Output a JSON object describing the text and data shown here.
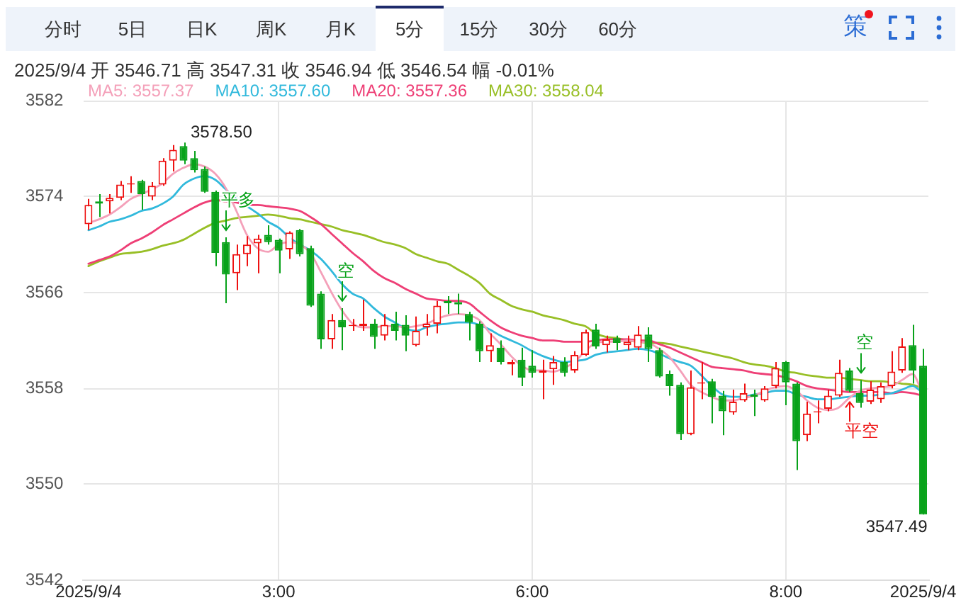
{
  "chart_data": {
    "type": "candlestick",
    "subtitle": "2025/9/4 开 3546.71 高 3547.31 收 3546.94 低 3546.54 幅 -0.01%",
    "categories": [
      "2025/9/4",
      null,
      null,
      null,
      null,
      null,
      null,
      null,
      null,
      null,
      null,
      null,
      null,
      null,
      null,
      null,
      null,
      null,
      "3:00",
      null,
      null,
      null,
      null,
      null,
      null,
      null,
      null,
      null,
      null,
      null,
      null,
      null,
      null,
      null,
      null,
      null,
      null,
      null,
      null,
      null,
      null,
      null,
      "6:00",
      null,
      null,
      null,
      null,
      null,
      null,
      null,
      null,
      null,
      null,
      null,
      null,
      null,
      null,
      null,
      null,
      null,
      null,
      null,
      null,
      null,
      null,
      null,
      "8:00",
      null,
      null,
      null,
      null,
      null,
      null,
      null,
      null,
      null,
      null,
      null,
      null,
      "2025/9/4"
    ],
    "ohlc": [
      [
        3571.7,
        3573.8,
        3571.2,
        3573.3
      ],
      [
        3573.6,
        3574.2,
        3572.3,
        3573.4
      ],
      [
        3573.6,
        3574.2,
        3572.6,
        3573.9
      ],
      [
        3573.9,
        3575.3,
        3573.7,
        3575.0
      ],
      [
        3575.0,
        3575.7,
        3574.3,
        3575.1
      ],
      [
        3575.3,
        3575.4,
        3572.9,
        3574.2
      ],
      [
        3574.0,
        3575.2,
        3573.7,
        3574.9
      ],
      [
        3575.0,
        3577.2,
        3574.9,
        3577.0
      ],
      [
        3577.0,
        3578.3,
        3576.1,
        3577.9
      ],
      [
        3578.2,
        3578.5,
        3576.7,
        3577.0
      ],
      [
        3577.2,
        3577.8,
        3576.0,
        3576.2
      ],
      [
        3576.3,
        3576.5,
        3574.3,
        3574.4
      ],
      [
        3574.4,
        3574.5,
        3568.2,
        3569.3
      ],
      [
        3570.2,
        3570.6,
        3565.1,
        3567.5
      ],
      [
        3567.6,
        3570.0,
        3566.2,
        3569.2
      ],
      [
        3569.2,
        3570.7,
        3568.2,
        3570.0
      ],
      [
        3570.1,
        3570.8,
        3567.6,
        3570.5
      ],
      [
        3570.8,
        3571.6,
        3570.0,
        3570.2
      ],
      [
        3570.4,
        3570.5,
        3567.6,
        3569.5
      ],
      [
        3569.6,
        3571.1,
        3568.8,
        3571.0
      ],
      [
        3571.2,
        3571.3,
        3569.0,
        3569.2
      ],
      [
        3569.7,
        3569.9,
        3564.8,
        3564.9
      ],
      [
        3565.9,
        3566.1,
        3561.3,
        3562.1
      ],
      [
        3562.1,
        3564.2,
        3561.3,
        3563.7
      ],
      [
        3563.7,
        3564.7,
        3561.2,
        3563.1
      ],
      [
        3563.2,
        3563.8,
        3562.8,
        3563.3
      ],
      [
        3563.2,
        3565.4,
        3562.8,
        3563.4
      ],
      [
        3563.4,
        3563.8,
        3561.3,
        3562.3
      ],
      [
        3562.4,
        3564.2,
        3562.0,
        3563.3
      ],
      [
        3563.4,
        3564.4,
        3562.0,
        3562.8
      ],
      [
        3563.3,
        3564.1,
        3561.1,
        3562.4
      ],
      [
        3561.6,
        3564.0,
        3561.5,
        3562.8
      ],
      [
        3563.1,
        3564.2,
        3562.4,
        3563.4
      ],
      [
        3563.4,
        3565.3,
        3562.6,
        3564.9
      ],
      [
        3565.3,
        3565.7,
        3564.2,
        3565.1
      ],
      [
        3565.2,
        3565.9,
        3564.2,
        3565.0
      ],
      [
        3564.2,
        3564.4,
        3562.0,
        3563.5
      ],
      [
        3563.4,
        3563.6,
        3560.2,
        3561.1
      ],
      [
        3561.1,
        3562.6,
        3560.2,
        3561.6
      ],
      [
        3561.4,
        3562.0,
        3560.0,
        3560.2
      ],
      [
        3560.0,
        3560.4,
        3559.1,
        3560.2
      ],
      [
        3560.4,
        3561.4,
        3558.2,
        3558.9
      ],
      [
        3559.9,
        3561.2,
        3558.9,
        3559.3
      ],
      [
        3559.3,
        3560.4,
        3557.1,
        3559.5
      ],
      [
        3559.6,
        3560.7,
        3558.3,
        3560.2
      ],
      [
        3560.2,
        3560.6,
        3559.0,
        3559.3
      ],
      [
        3559.5,
        3561.1,
        3559.3,
        3560.8
      ],
      [
        3560.8,
        3562.9,
        3560.7,
        3562.7
      ],
      [
        3562.9,
        3563.4,
        3561.3,
        3561.5
      ],
      [
        3561.6,
        3562.4,
        3561.0,
        3562.1
      ],
      [
        3562.2,
        3562.4,
        3561.2,
        3561.8
      ],
      [
        3561.6,
        3562.4,
        3561.2,
        3561.9
      ],
      [
        3561.4,
        3563.2,
        3561.2,
        3562.5
      ],
      [
        3562.5,
        3563.1,
        3560.2,
        3561.3
      ],
      [
        3561.2,
        3561.4,
        3558.9,
        3559.0
      ],
      [
        3559.2,
        3559.5,
        3557.4,
        3558.2
      ],
      [
        3558.3,
        3558.5,
        3553.7,
        3554.2
      ],
      [
        3554.2,
        3559.5,
        3554.1,
        3558.1
      ],
      [
        3558.4,
        3560.2,
        3557.1,
        3558.5
      ],
      [
        3558.6,
        3558.8,
        3555.1,
        3557.3
      ],
      [
        3557.4,
        3557.8,
        3554.1,
        3556.1
      ],
      [
        3556.0,
        3557.9,
        3555.8,
        3556.9
      ],
      [
        3557.0,
        3558.4,
        3556.9,
        3557.6
      ],
      [
        3557.5,
        3557.9,
        3555.7,
        3557.3
      ],
      [
        3557.0,
        3558.2,
        3556.9,
        3558.0
      ],
      [
        3558.2,
        3560.2,
        3558.0,
        3559.7
      ],
      [
        3560.2,
        3560.3,
        3556.6,
        3558.5
      ],
      [
        3558.4,
        3558.5,
        3551.2,
        3553.6
      ],
      [
        3554.1,
        3556.9,
        3553.6,
        3555.9
      ],
      [
        3556.0,
        3557.0,
        3555.1,
        3556.1
      ],
      [
        3556.3,
        3557.9,
        3556.1,
        3557.4
      ],
      [
        3557.4,
        3560.4,
        3557.3,
        3559.3
      ],
      [
        3559.5,
        3559.7,
        3557.7,
        3557.8
      ],
      [
        3557.6,
        3558.7,
        3556.4,
        3556.8
      ],
      [
        3556.9,
        3558.6,
        3556.7,
        3557.9
      ],
      [
        3557.1,
        3558.5,
        3556.8,
        3558.2
      ],
      [
        3558.2,
        3561.1,
        3558.0,
        3559.4
      ],
      [
        3559.5,
        3562.2,
        3559.3,
        3561.5
      ],
      [
        3561.6,
        3563.3,
        3558.4,
        3559.5
      ],
      [
        3559.9,
        3561.3,
        3547.49,
        3547.49
      ]
    ],
    "colors": [
      "#ee1111",
      "#08a21a",
      "#ee1111",
      "#ee1111",
      "#ee1111",
      "#08a21a",
      "#ee1111",
      "#ee1111",
      "#ee1111",
      "#08a21a",
      "#08a21a",
      "#08a21a",
      "#08a21a",
      "#08a21a",
      "#ee1111",
      "#ee1111",
      "#ee1111",
      "#08a21a",
      "#08a21a",
      "#ee1111",
      "#08a21a",
      "#08a21a",
      "#08a21a",
      "#ee1111",
      "#08a21a",
      "#ee1111",
      "#ee1111",
      "#08a21a",
      "#ee1111",
      "#08a21a",
      "#08a21a",
      "#ee1111",
      "#ee1111",
      "#ee1111",
      "#08a21a",
      "#08a21a",
      "#08a21a",
      "#08a21a",
      "#ee1111",
      "#08a21a",
      "#ee1111",
      "#08a21a",
      "#08a21a",
      "#ee1111",
      "#ee1111",
      "#08a21a",
      "#ee1111",
      "#ee1111",
      "#08a21a",
      "#ee1111",
      "#08a21a",
      "#ee1111",
      "#ee1111",
      "#08a21a",
      "#08a21a",
      "#08a21a",
      "#08a21a",
      "#ee1111",
      "#ee1111",
      "#08a21a",
      "#08a21a",
      "#ee1111",
      "#ee1111",
      "#08a21a",
      "#ee1111",
      "#ee1111",
      "#08a21a",
      "#08a21a",
      "#ee1111",
      "#ee1111",
      "#ee1111",
      "#ee1111",
      "#08a21a",
      "#08a21a",
      "#ee1111",
      "#ee1111",
      "#ee1111",
      "#ee1111",
      "#08a21a",
      "#08a21a"
    ],
    "value_labels": [
      null,
      null,
      null,
      null,
      null,
      null,
      null,
      null,
      null,
      "3578.50",
      null,
      null,
      null,
      null,
      null,
      null,
      null,
      null,
      null,
      null,
      null,
      null,
      null,
      null,
      null,
      null,
      null,
      null,
      null,
      null,
      null,
      null,
      null,
      null,
      null,
      null,
      null,
      null,
      null,
      null,
      null,
      null,
      null,
      null,
      null,
      null,
      null,
      null,
      null,
      null,
      null,
      null,
      null,
      null,
      null,
      null,
      null,
      null,
      null,
      null,
      null,
      null,
      null,
      null,
      null,
      null,
      null,
      null,
      null,
      null,
      null,
      null,
      null,
      null,
      null,
      null,
      null,
      null,
      null,
      "3547.49"
    ],
    "series": [
      {
        "type": "line",
        "name": "MA5: 3557.37",
        "color": "#f4a0b9",
        "values": [
          3571.8,
          3572.1,
          3572.5,
          3573.1,
          3573.8,
          3574.2,
          3574.6,
          3575.1,
          3575.9,
          3576.4,
          3576.7,
          3576.5,
          3575.9,
          3574.7,
          3572.8,
          3570.8,
          3569.7,
          3569.4,
          3570.0,
          3570.2,
          3570.0,
          3569.3,
          3567.7,
          3566.0,
          3564.5,
          3563.4,
          3563.1,
          3563.1,
          3563.2,
          3563.2,
          3563.1,
          3563.2,
          3563.4,
          3563.8,
          3564.1,
          3564.2,
          3564.1,
          3563.7,
          3562.6,
          3561.7,
          3560.7,
          3559.9,
          3559.5,
          3559.5,
          3559.4,
          3559.7,
          3560.2,
          3561.1,
          3561.8,
          3561.9,
          3561.9,
          3562.0,
          3561.9,
          3561.8,
          3561.3,
          3560.6,
          3559.5,
          3558.3,
          3557.7,
          3557.3,
          3557.0,
          3557.0,
          3557.2,
          3557.4,
          3557.8,
          3558.1,
          3558.2,
          3557.8,
          3557.0,
          3556.4,
          3556.2,
          3556.4,
          3557.2,
          3557.8,
          3558.0,
          3558.1,
          3558.2,
          3558.7,
          3559.2,
          3557.4
        ]
      },
      {
        "type": "line",
        "name": "MA10: 3557.60",
        "color": "#31b9dc",
        "values": [
          3571.2,
          3571.5,
          3571.9,
          3572.1,
          3572.4,
          3572.8,
          3573.0,
          3573.4,
          3574.0,
          3575.0,
          3575.5,
          3575.7,
          3575.4,
          3574.6,
          3573.8,
          3573.2,
          3572.6,
          3571.9,
          3571.4,
          3570.6,
          3570.0,
          3569.5,
          3568.8,
          3567.8,
          3566.7,
          3565.9,
          3565.5,
          3564.7,
          3564.0,
          3563.5,
          3563.0,
          3562.8,
          3563.1,
          3563.3,
          3563.4,
          3563.5,
          3563.5,
          3563.3,
          3562.9,
          3562.4,
          3562.0,
          3561.6,
          3561.1,
          3560.7,
          3560.4,
          3560.2,
          3560.3,
          3560.4,
          3560.8,
          3561.0,
          3561.1,
          3561.2,
          3561.3,
          3561.2,
          3560.9,
          3560.5,
          3560.2,
          3559.9,
          3559.1,
          3558.2,
          3557.5,
          3557.3,
          3557.3,
          3557.5,
          3557.6,
          3557.8,
          3557.8,
          3557.5,
          3557.3,
          3557.1,
          3557.1,
          3557.2,
          3557.3,
          3557.4,
          3557.4,
          3557.5,
          3557.6,
          3557.9,
          3558.2,
          3557.6
        ]
      },
      {
        "type": "line",
        "name": "MA20: 3557.36",
        "color": "#ee3f76",
        "values": [
          3568.4,
          3568.7,
          3569.0,
          3569.5,
          3570.1,
          3570.5,
          3571.0,
          3571.6,
          3572.1,
          3572.6,
          3573.1,
          3573.5,
          3573.7,
          3573.6,
          3573.5,
          3573.3,
          3573.3,
          3573.2,
          3573.1,
          3573.0,
          3572.8,
          3572.3,
          3571.7,
          3570.9,
          3570.1,
          3569.3,
          3568.6,
          3567.8,
          3567.2,
          3566.8,
          3566.3,
          3565.9,
          3565.5,
          3565.4,
          3565.3,
          3565.3,
          3565.1,
          3564.4,
          3563.7,
          3563.1,
          3562.7,
          3562.4,
          3562.2,
          3562.0,
          3562.0,
          3561.9,
          3561.9,
          3561.9,
          3562.0,
          3562.1,
          3562.1,
          3562.1,
          3562.0,
          3562.0,
          3561.7,
          3561.4,
          3561.0,
          3560.6,
          3560.2,
          3559.8,
          3559.7,
          3559.6,
          3559.5,
          3559.3,
          3559.2,
          3559.1,
          3558.9,
          3558.6,
          3558.2,
          3558.0,
          3557.9,
          3557.8,
          3557.7,
          3557.7,
          3557.7,
          3557.7,
          3557.6,
          3557.7,
          3557.6,
          3557.4
        ]
      },
      {
        "type": "line",
        "name": "MA30: 3558.04",
        "color": "#98bf26",
        "values": [
          3568.2,
          3568.6,
          3568.9,
          3569.2,
          3569.3,
          3569.4,
          3569.6,
          3569.9,
          3570.1,
          3570.4,
          3570.9,
          3571.4,
          3571.8,
          3572.0,
          3572.2,
          3572.3,
          3572.4,
          3572.5,
          3572.4,
          3572.2,
          3572.1,
          3571.9,
          3571.7,
          3571.5,
          3571.2,
          3571.0,
          3570.8,
          3570.5,
          3570.2,
          3570.0,
          3569.7,
          3569.2,
          3568.9,
          3568.6,
          3568.4,
          3567.9,
          3567.4,
          3566.8,
          3565.9,
          3565.4,
          3564.9,
          3564.6,
          3564.4,
          3564.1,
          3563.9,
          3563.7,
          3563.4,
          3563.2,
          3562.6,
          3562.3,
          3562.2,
          3562.0,
          3561.9,
          3561.8,
          3561.8,
          3561.7,
          3561.5,
          3561.3,
          3561.1,
          3560.9,
          3560.7,
          3560.5,
          3560.2,
          3560.0,
          3559.9,
          3559.7,
          3559.4,
          3559.3,
          3559.1,
          3559.0,
          3558.9,
          3558.9,
          3558.8,
          3558.7,
          3558.6,
          3558.6,
          3558.5,
          3558.4,
          3558.3,
          3558.0
        ]
      }
    ],
    "ylim": [
      3542,
      3582
    ],
    "yticks": [
      3542,
      3550,
      3558,
      3566,
      3574,
      3582
    ],
    "grid": true,
    "legend": "top left",
    "annotations": [
      "分时",
      "5日",
      "日K",
      "周K",
      "月K",
      "5分",
      "15分",
      "30分",
      "60分",
      "策",
      {
        "text": "平多",
        "y": 3570.6
      },
      {
        "text": "空",
        "y": 3564.7
      },
      {
        "text": "空",
        "y": 3558.7
      },
      {
        "text": "平空",
        "y": 3557.7
      }
    ]
  }
}
